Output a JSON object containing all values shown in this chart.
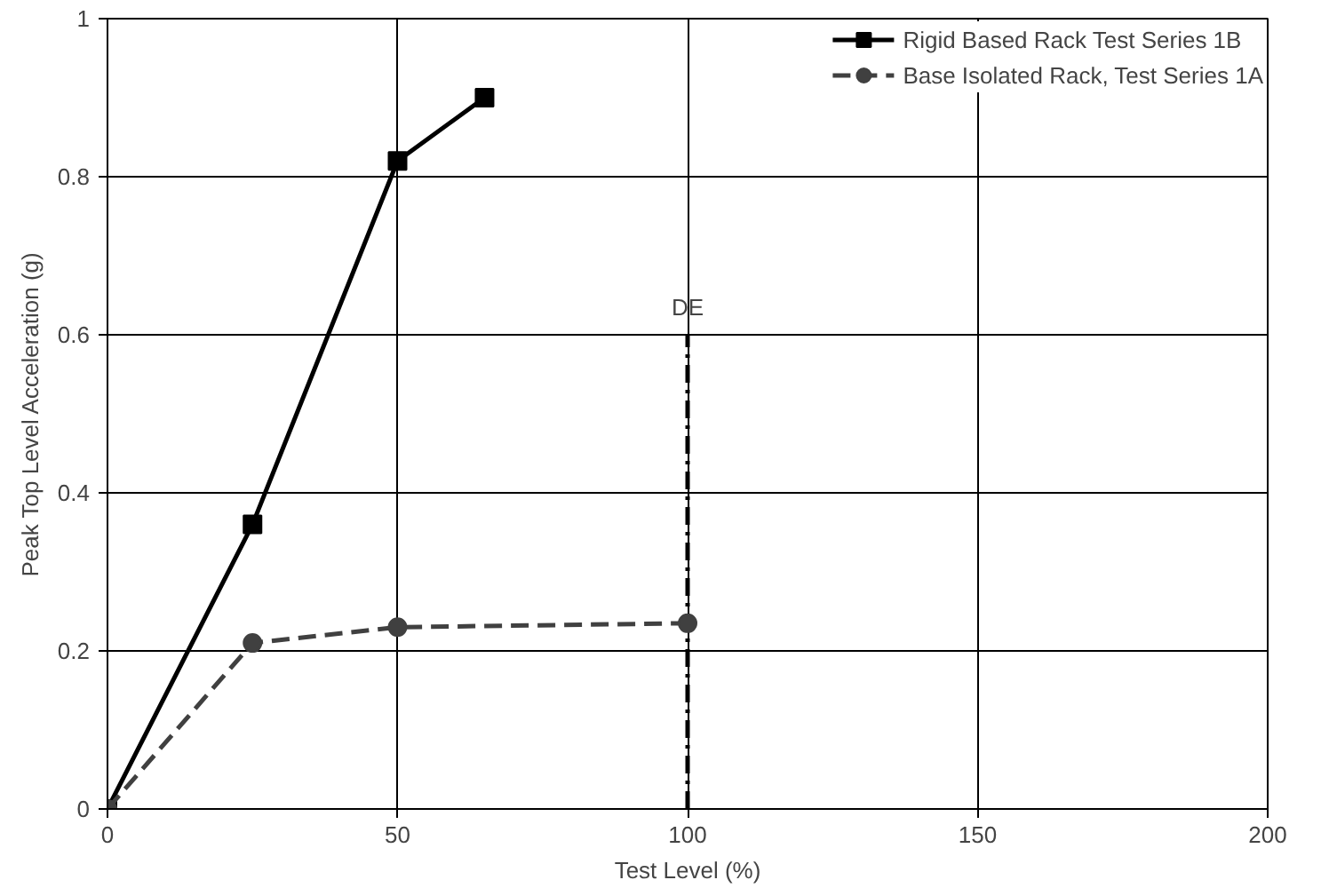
{
  "chart_data": {
    "type": "line",
    "xlabel": "Test Level (%)",
    "ylabel": "Peak Top Level Acceleration (g)",
    "series": [
      {
        "name": "Rigid Based Rack Test Series 1B",
        "color": "#000000",
        "marker": "square",
        "line_style": "solid",
        "x": [
          0,
          25,
          50,
          65
        ],
        "values": [
          0,
          0.36,
          0.82,
          0.9
        ]
      },
      {
        "name": "Base Isolated Rack, Test Series 1A",
        "color": "#404040",
        "marker": "circle",
        "line_style": "dashed",
        "x": [
          0,
          25,
          50,
          100
        ],
        "values": [
          0,
          0.21,
          0.23,
          0.235
        ]
      }
    ],
    "xlim": [
      0,
      200
    ],
    "xticks": [
      0,
      50,
      100,
      150,
      200
    ],
    "ylim": [
      0,
      1
    ],
    "yticks": [
      0,
      0.2,
      0.4,
      0.6,
      0.8,
      {
        "value": 1,
        "label": "1"
      }
    ],
    "ref_lines": [
      {
        "axis": "x",
        "value": 100,
        "label": "DE",
        "color": "#000000",
        "line_style": "dashdot"
      }
    ],
    "grid": true,
    "legend": "top right"
  }
}
